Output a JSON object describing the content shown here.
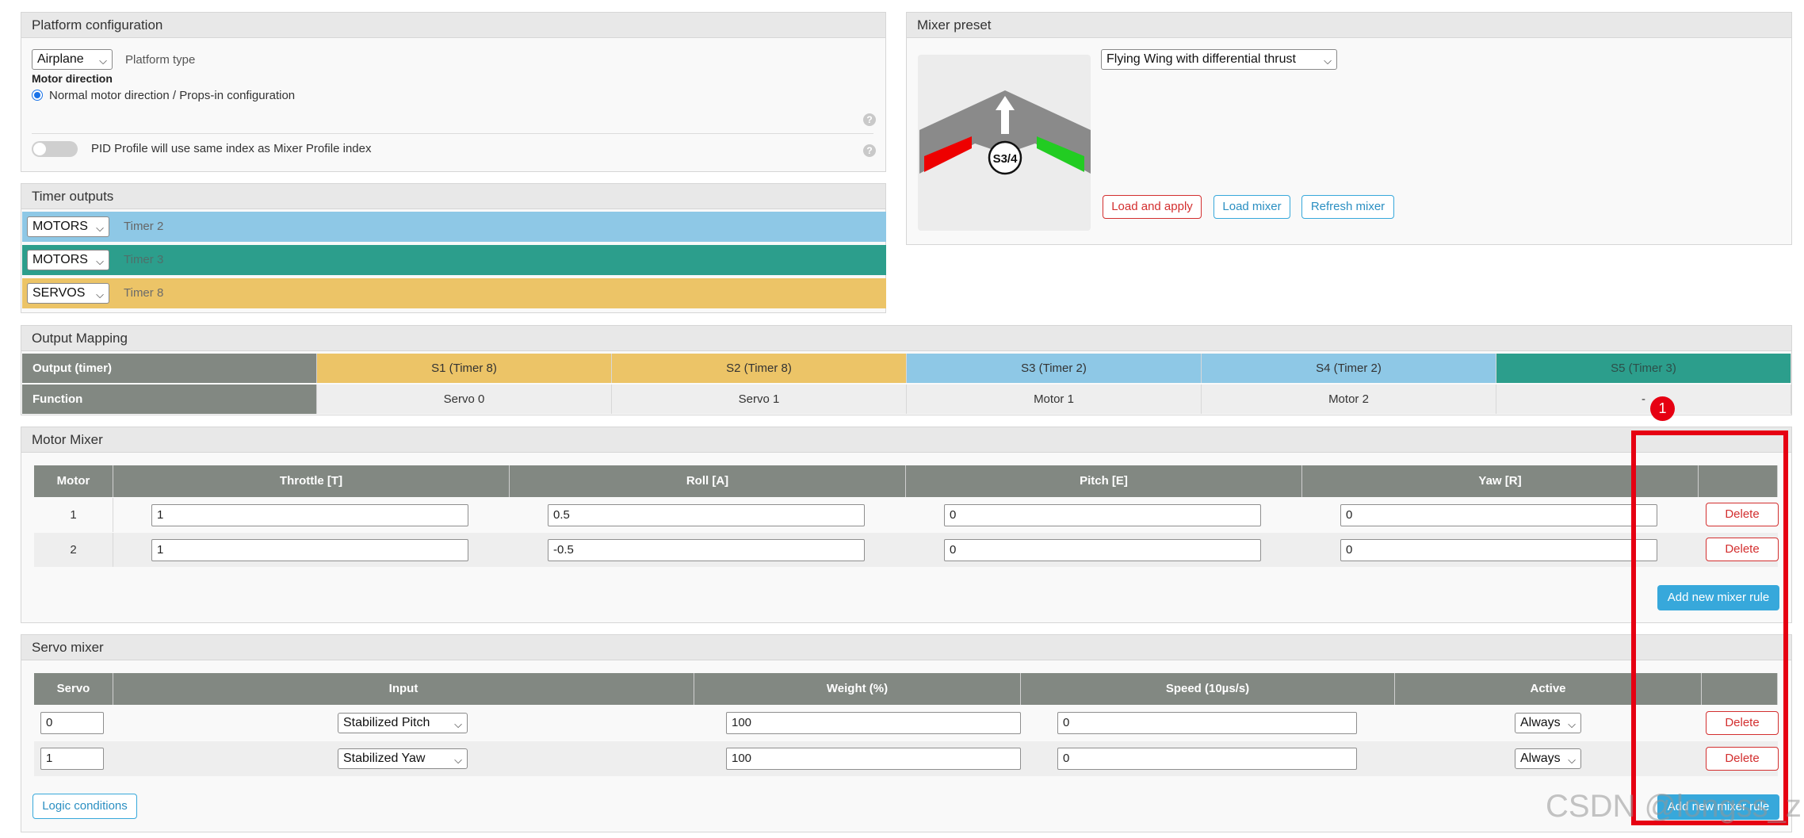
{
  "platform": {
    "title": "Platform configuration",
    "platform_select": "Airplane",
    "platform_label": "Platform type",
    "motor_direction_label": "Motor direction",
    "motor_direction_option": "Normal motor direction / Props-in configuration",
    "pid_toggle_label": "PID Profile will use same index as Mixer Profile index",
    "pid_toggle_on": false
  },
  "mixer_preset": {
    "title": "Mixer preset",
    "selected": "Flying Wing with differential thrust",
    "badge": "S3/4",
    "load_apply": "Load and apply",
    "load_mixer": "Load mixer",
    "refresh_mixer": "Refresh mixer"
  },
  "timer_outputs": {
    "title": "Timer outputs",
    "rows": [
      {
        "mode": "MOTORS",
        "timer": "Timer 2",
        "color": "#8ec8e6"
      },
      {
        "mode": "MOTORS",
        "timer": "Timer 3",
        "color": "#2c9e8c"
      },
      {
        "mode": "SERVOS",
        "timer": "Timer 8",
        "color": "#ecc467"
      }
    ]
  },
  "output_mapping": {
    "title": "Output Mapping",
    "row1_label": "Output (timer)",
    "row2_label": "Function",
    "columns": [
      {
        "output": "S1 (Timer 8)",
        "function": "Servo 0",
        "color": "#ecc467"
      },
      {
        "output": "S2 (Timer 8)",
        "function": "Servo 1",
        "color": "#ecc467"
      },
      {
        "output": "S3 (Timer 2)",
        "function": "Motor 1",
        "color": "#8ec8e6"
      },
      {
        "output": "S4 (Timer 2)",
        "function": "Motor 2",
        "color": "#8ec8e6"
      },
      {
        "output": "S5 (Timer 3)",
        "function": "-",
        "color": "#2c9e8c"
      }
    ]
  },
  "motor_mixer": {
    "title": "Motor Mixer",
    "headers": [
      "Motor",
      "Throttle [T]",
      "Roll [A]",
      "Pitch [E]",
      "Yaw [R]"
    ],
    "rows": [
      {
        "motor": "1",
        "throttle": "1",
        "roll": "0.5",
        "pitch": "0",
        "yaw": "0"
      },
      {
        "motor": "2",
        "throttle": "1",
        "roll": "-0.5",
        "pitch": "0",
        "yaw": "0"
      }
    ],
    "delete_label": "Delete",
    "add_rule": "Add new mixer rule"
  },
  "servo_mixer": {
    "title": "Servo mixer",
    "headers": [
      "Servo",
      "Input",
      "Weight (%)",
      "Speed (10µs/s)",
      "Active"
    ],
    "rows": [
      {
        "servo": "0",
        "input": "Stabilized Pitch",
        "weight": "100",
        "speed": "0",
        "active": "Always"
      },
      {
        "servo": "1",
        "input": "Stabilized Yaw",
        "weight": "100",
        "speed": "0",
        "active": "Always"
      }
    ],
    "delete_label": "Delete",
    "logic_conditions": "Logic conditions",
    "add_rule": "Add new mixer rule"
  },
  "annotation": {
    "marker": "1",
    "color": "#e60012"
  },
  "watermark": "CSDN @longss_z",
  "help_glyph": "?"
}
